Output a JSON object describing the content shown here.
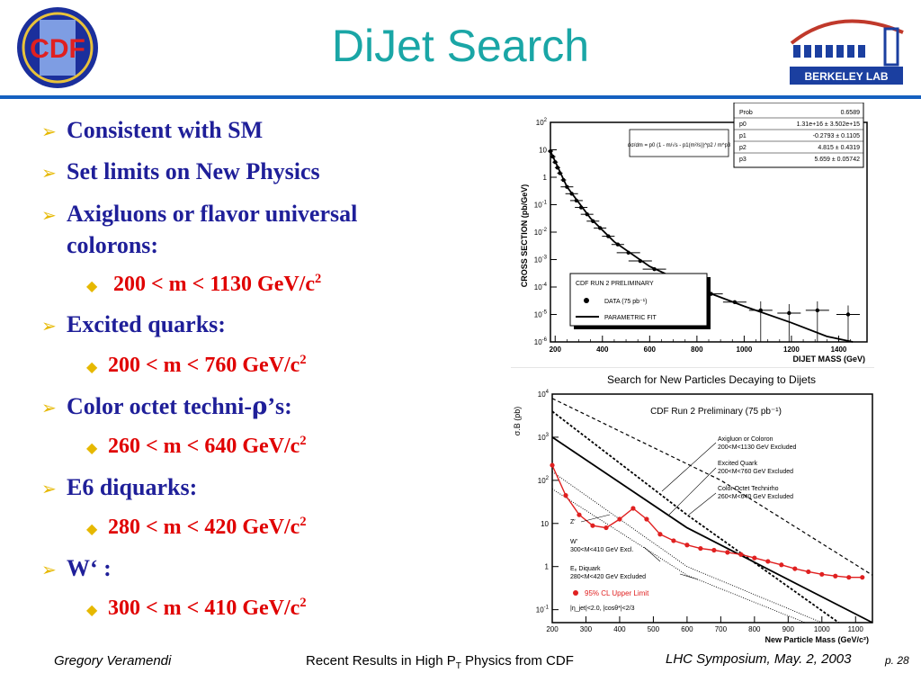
{
  "slide": {
    "title": "DiJet Search",
    "logos": {
      "left_text": "CDF",
      "right_text": "BERKELEY LAB"
    },
    "bullets": [
      {
        "text": "Consistent with SM"
      },
      {
        "text": "Set limits on New Physics"
      },
      {
        "text_line1": "Axigluons or flavor universal",
        "text_line2": "colorons:"
      },
      {
        "sub": "200 < m < 1130 GeV/c",
        "sup": "2"
      },
      {
        "text": "Excited quarks:"
      },
      {
        "sub": "200 < m < 760 GeV/c",
        "sup": "2"
      },
      {
        "text_prefix": "Color octet techni-",
        "symbol": "ρ",
        "text_suffix": "’s:"
      },
      {
        "sub": "260 < m <  640 GeV/c",
        "sup": "2"
      },
      {
        "text": "E6 diquarks:"
      },
      {
        "sub": "280 < m <  420 GeV/c",
        "sup": "2"
      },
      {
        "text": "W‘ :"
      },
      {
        "sub": "300 < m <  410 GeV/c",
        "sup": "2"
      }
    ],
    "footer": {
      "author": "Gregory Veramendi",
      "center_prefix": "Recent Results in High P",
      "center_sub": "T",
      "center_suffix": " Physics from CDF",
      "right": "LHC Symposium, May. 2, 2003",
      "page": "p. 28"
    }
  },
  "chart_data": [
    {
      "type": "scatter",
      "ylabel": "CROSS  SECTION (pb/GeV)",
      "xlabel": "DIJET MASS (GeV)",
      "xlim": [
        180,
        1520
      ],
      "ylim_log10": [
        -6,
        2
      ],
      "x_ticks": [
        "200",
        "400",
        "600",
        "800",
        "1000",
        "1200",
        "1400"
      ],
      "y_ticks": [
        "10^2",
        "10",
        "1",
        "10^-1",
        "10^-2",
        "10^-3",
        "10^-4",
        "10^-5",
        "10^-6"
      ],
      "fit_box": [
        {
          "name": "Prob",
          "value": "0.6589"
        },
        {
          "name": "p0",
          "value": "1.31e+16 ± 3.502e+15"
        },
        {
          "name": "p1",
          "value": "-0.2793 ± 0.1105"
        },
        {
          "name": "p2",
          "value": "4.815 ± 0.4319"
        },
        {
          "name": "p3",
          "value": "5.659 ± 0.05742"
        }
      ],
      "formula": "dσ/dm = p0 (1 - m/√s - p1(m²/s))^p2 / m^p3",
      "legend": {
        "title": "CDF RUN 2 PRELIMINARY",
        "data_label": "DATA (75 pb⁻¹)",
        "fit_label": "PARAMETRIC FIT"
      },
      "data_points": [
        [
          180,
          0.95
        ],
        [
          190,
          0.75
        ],
        [
          200,
          0.55
        ],
        [
          210,
          0.35
        ],
        [
          220,
          0.15
        ],
        [
          235,
          -0.1
        ],
        [
          250,
          -0.35
        ],
        [
          270,
          -0.6
        ],
        [
          290,
          -0.85
        ],
        [
          310,
          -1.1
        ],
        [
          335,
          -1.35
        ],
        [
          360,
          -1.6
        ],
        [
          390,
          -1.85
        ],
        [
          425,
          -2.15
        ],
        [
          465,
          -2.45
        ],
        [
          510,
          -2.75
        ],
        [
          560,
          -3.05
        ],
        [
          620,
          -3.35
        ],
        [
          690,
          -3.65
        ],
        [
          770,
          -3.95
        ],
        [
          860,
          -4.25
        ],
        [
          960,
          -4.55
        ],
        [
          1070,
          -4.85
        ],
        [
          1190,
          -4.95
        ],
        [
          1310,
          -4.85
        ],
        [
          1440,
          -5.0
        ]
      ],
      "fit_curve": [
        [
          180,
          0.95
        ],
        [
          250,
          -0.35
        ],
        [
          350,
          -1.5
        ],
        [
          450,
          -2.35
        ],
        [
          600,
          -3.25
        ],
        [
          800,
          -4.05
        ],
        [
          1000,
          -4.7
        ],
        [
          1200,
          -5.3
        ],
        [
          1350,
          -5.8
        ],
        [
          1460,
          -6.0
        ]
      ]
    },
    {
      "type": "line",
      "title": "Search for New Particles Decaying to Dijets",
      "subtitle": "CDF Run 2 Preliminary (75 pb⁻¹)",
      "ylabel": "σ.B (pb)",
      "xlabel": "New Particle Mass (GeV/c²)",
      "xlim": [
        200,
        1150
      ],
      "ylim_log10": [
        -1.3,
        4
      ],
      "x_ticks": [
        "200",
        "300",
        "400",
        "500",
        "600",
        "700",
        "800",
        "900",
        "1000",
        "1100"
      ],
      "y_ticks": [
        "10^4",
        "10^3",
        "10^2",
        "10",
        "1",
        "10^-1"
      ],
      "annotations": [
        {
          "line1": "Axigluon or Coloron",
          "line2": "200<M<1130 GeV Excluded"
        },
        {
          "line1": "Excited Quark",
          "line2": "200<M<760 GeV Excluded"
        },
        {
          "line1": "Color Octet Technirho",
          "line2": "260<M<640 GeV Excluded"
        },
        {
          "line1": "Z′"
        },
        {
          "line1": "W′",
          "line2": "300<M<410 GeV Excl."
        },
        {
          "line1": "E₆ Diquark",
          "line2": "280<M<420 GeV Excluded"
        }
      ],
      "legend_label": "95% CL Upper Limit",
      "cuts": "|η_jet|<2.0,   |cosθ*|<2/3",
      "series": [
        {
          "name": "95% CL Upper Limit",
          "x": [
            200,
            240,
            280,
            320,
            360,
            400,
            440,
            480,
            520,
            560,
            600,
            640,
            680,
            720,
            760,
            800,
            840,
            880,
            920,
            960,
            1000,
            1040,
            1080,
            1120
          ],
          "y": [
            2.35,
            1.65,
            1.2,
            0.95,
            0.9,
            1.1,
            1.35,
            1.1,
            0.75,
            0.6,
            0.5,
            0.42,
            0.38,
            0.33,
            0.28,
            0.2,
            0.12,
            0.04,
            -0.05,
            -0.12,
            -0.18,
            -0.22,
            -0.25,
            -0.25
          ]
        },
        {
          "x": [
            200,
            600,
            1150
          ],
          "y": [
            3.0,
            0.9,
            -1.3
          ]
        },
        {
          "x": [
            200,
            600,
            1050
          ],
          "y": [
            3.6,
            1.2,
            -1.3
          ]
        },
        {
          "x": [
            200,
            700,
            1150
          ],
          "y": [
            3.9,
            2.0,
            -0.2
          ]
        },
        {
          "x": [
            200,
            600,
            1000
          ],
          "y": [
            2.2,
            0.0,
            -1.3
          ]
        },
        {
          "x": [
            200,
            600,
            950
          ],
          "y": [
            1.8,
            -0.2,
            -1.3
          ]
        }
      ]
    }
  ]
}
